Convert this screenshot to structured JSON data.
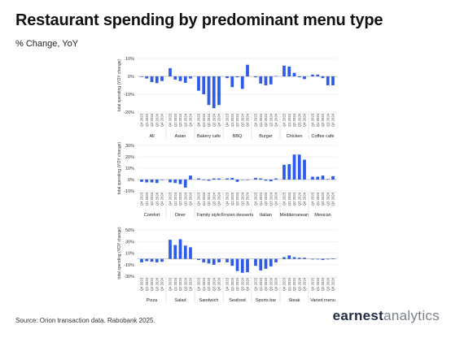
{
  "header": {
    "title": "Restaurant spending by predominant menu type",
    "subtitle": "% Change, YoY"
  },
  "footer": {
    "source": "Source: Orion transaction data. Rabobank 2025.",
    "brand_part1": "earnest",
    "brand_part2": "analytics"
  },
  "colors": {
    "bar": "#2f5bea",
    "grid": "#e3e3e3",
    "zero_line": "#b5b5b5",
    "separator": "#c8c8c8"
  },
  "quarters": [
    "Q4 2023",
    "Q1 2024",
    "Q2 2024",
    "Q3 2024",
    "Q4 2024"
  ],
  "chart_data": [
    {
      "type": "bar",
      "ylabel": "total spending (YOY change)",
      "ylim": [
        -20,
        10
      ],
      "yticks": [
        -20,
        -10,
        0,
        10
      ],
      "tick_labels": [
        "-20%",
        "-10%",
        "0%",
        "10%"
      ],
      "grid": true,
      "x": [
        "Q4 2023",
        "Q1 2024",
        "Q2 2024",
        "Q3 2024",
        "Q4 2024"
      ],
      "groups": [
        {
          "name": "All",
          "values": [
            -0.3,
            -1.2,
            -3.2,
            -3.8,
            -2.6
          ]
        },
        {
          "name": "Asian",
          "values": [
            4.6,
            -1.8,
            -2.6,
            -3.6,
            -1.2
          ]
        },
        {
          "name": "Bakery cafe",
          "values": [
            -8.0,
            -10.0,
            -16.0,
            -17.8,
            -16.0
          ]
        },
        {
          "name": "BBQ",
          "values": [
            -1.0,
            -6.0,
            -0.5,
            -7.0,
            6.5
          ]
        },
        {
          "name": "Burger",
          "values": [
            -0.5,
            -4.0,
            -5.0,
            -4.5,
            0.2
          ]
        },
        {
          "name": "Chicken",
          "values": [
            6.0,
            5.5,
            2.0,
            -0.5,
            -1.5
          ]
        },
        {
          "name": "Coffee cafe",
          "values": [
            1.0,
            1.0,
            -1.0,
            -5.0,
            -5.0
          ]
        }
      ]
    },
    {
      "type": "bar",
      "ylabel": "total spending (YOY change)",
      "ylim": [
        -10,
        30
      ],
      "yticks": [
        -10,
        0,
        10,
        20,
        30
      ],
      "tick_labels": [
        "-10%",
        "0%",
        "10%",
        "20%",
        "30%"
      ],
      "grid": true,
      "x": [
        "Q4 2023",
        "Q1 2024",
        "Q2 2024",
        "Q3 2024",
        "Q4 2024"
      ],
      "groups": [
        {
          "name": "Comfort",
          "values": [
            -2.0,
            -2.5,
            -2.5,
            -3.0,
            -0.5
          ]
        },
        {
          "name": "Diner",
          "values": [
            -2.5,
            -3.0,
            -4.0,
            -7.0,
            3.5
          ]
        },
        {
          "name": "Family style",
          "values": [
            1.0,
            -0.5,
            -1.0,
            1.0,
            1.0
          ]
        },
        {
          "name": "Frozen desserts",
          "values": [
            1.0,
            1.5,
            -2.0,
            0.0,
            -0.5
          ]
        },
        {
          "name": "Italian",
          "values": [
            1.5,
            1.0,
            -1.0,
            -1.5,
            1.0
          ]
        },
        {
          "name": "Mediterranean",
          "values": [
            13.0,
            13.5,
            22.0,
            22.0,
            17.5
          ]
        },
        {
          "name": "Mexican",
          "values": [
            2.5,
            2.5,
            3.5,
            0.5,
            3.0
          ]
        }
      ]
    },
    {
      "type": "bar",
      "ylabel": "total spending (YOY change)",
      "ylim": [
        -30,
        50
      ],
      "yticks": [
        -30,
        -10,
        10,
        30,
        50
      ],
      "tick_labels": [
        "-30%",
        "-10%",
        "10%",
        "30%",
        "50%"
      ],
      "grid": true,
      "x": [
        "Q4 2023",
        "Q1 2024",
        "Q2 2024",
        "Q3 2024",
        "Q4 2024"
      ],
      "groups": [
        {
          "name": "Pizza",
          "values": [
            -6.0,
            -4.0,
            -5.0,
            -6.0,
            -5.0
          ]
        },
        {
          "name": "Salad",
          "values": [
            33.0,
            24.0,
            34.0,
            23.0,
            20.0
          ]
        },
        {
          "name": "Sandwich",
          "values": [
            -2.0,
            -6.0,
            -8.0,
            -10.0,
            -6.0
          ]
        },
        {
          "name": "Seafood",
          "values": [
            -6.0,
            -12.0,
            -21.0,
            -24.0,
            -23.0
          ]
        },
        {
          "name": "Sports bar",
          "values": [
            -12.0,
            -20.0,
            -17.0,
            -13.0,
            -6.0
          ]
        },
        {
          "name": "Steak",
          "values": [
            3.0,
            6.0,
            3.0,
            2.0,
            2.0
          ]
        },
        {
          "name": "Varied menu",
          "values": [
            -1.0,
            -1.0,
            -2.0,
            -1.0,
            1.0
          ]
        }
      ]
    }
  ]
}
